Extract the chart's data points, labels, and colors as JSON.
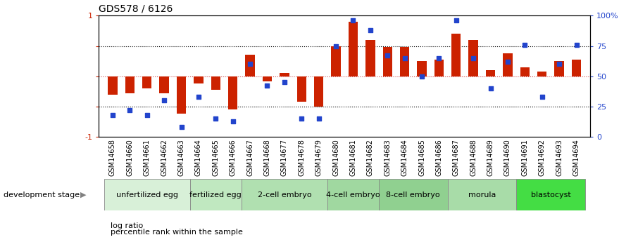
{
  "title": "GDS578 / 6126",
  "samples": [
    "GSM14658",
    "GSM14660",
    "GSM14661",
    "GSM14662",
    "GSM14663",
    "GSM14664",
    "GSM14665",
    "GSM14666",
    "GSM14667",
    "GSM14668",
    "GSM14677",
    "GSM14678",
    "GSM14679",
    "GSM14680",
    "GSM14681",
    "GSM14682",
    "GSM14683",
    "GSM14684",
    "GSM14685",
    "GSM14686",
    "GSM14687",
    "GSM14688",
    "GSM14689",
    "GSM14690",
    "GSM14691",
    "GSM14692",
    "GSM14693",
    "GSM14694"
  ],
  "log_ratio": [
    -0.3,
    -0.28,
    -0.2,
    -0.28,
    -0.62,
    -0.12,
    -0.22,
    -0.55,
    0.35,
    -0.08,
    0.05,
    -0.42,
    -0.5,
    0.5,
    0.9,
    0.6,
    0.48,
    0.48,
    0.25,
    0.28,
    0.7,
    0.6,
    0.1,
    0.38,
    0.15,
    0.08,
    0.25,
    0.28
  ],
  "percentile": [
    18,
    22,
    18,
    30,
    8,
    33,
    15,
    13,
    60,
    42,
    45,
    15,
    15,
    75,
    96,
    88,
    67,
    65,
    50,
    65,
    96,
    65,
    40,
    62,
    76,
    33,
    60,
    76
  ],
  "stage_groups": [
    {
      "label": "unfertilized egg",
      "start": 0,
      "end": 5,
      "color": "#d8f0d8"
    },
    {
      "label": "fertilized egg",
      "start": 5,
      "end": 8,
      "color": "#c0e8c0"
    },
    {
      "label": "2-cell embryo",
      "start": 8,
      "end": 13,
      "color": "#b0e0b0"
    },
    {
      "label": "4-cell embryo",
      "start": 13,
      "end": 16,
      "color": "#a0d8a0"
    },
    {
      "label": "8-cell embryo",
      "start": 16,
      "end": 20,
      "color": "#90d090"
    },
    {
      "label": "morula",
      "start": 20,
      "end": 24,
      "color": "#a8dca8"
    },
    {
      "label": "blastocyst",
      "start": 24,
      "end": 28,
      "color": "#44cc44"
    }
  ],
  "bar_color": "#cc2200",
  "dot_color": "#2244cc",
  "ylim": [
    -1.0,
    1.0
  ],
  "y2lim": [
    0,
    100
  ],
  "bg_color": "#ffffff",
  "title_fontsize": 10,
  "tick_label_fontsize": 7,
  "stage_fontsize": 8,
  "legend_fontsize": 8
}
